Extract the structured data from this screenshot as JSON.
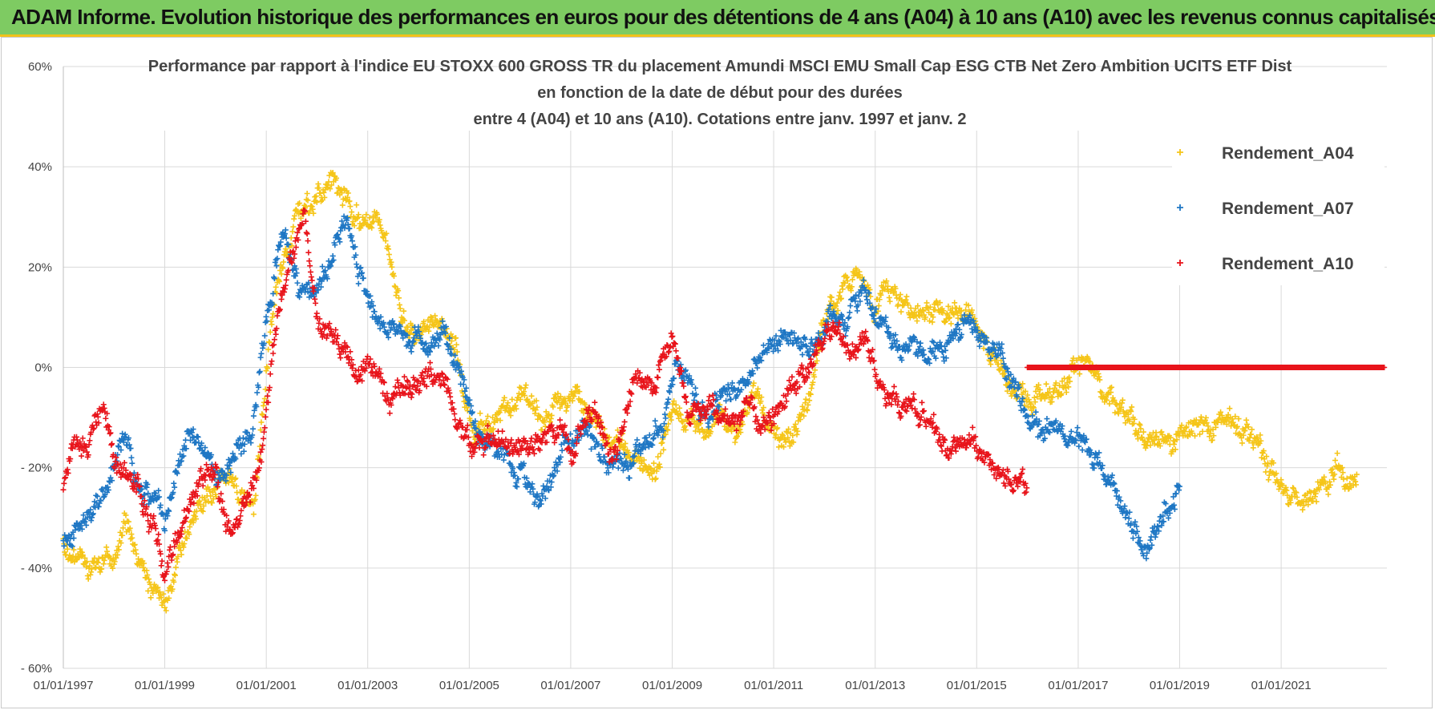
{
  "banner": {
    "title": "ADAM Informe. Evolution historique des performances en euros pour des détentions de 4 ans (A04) à 10 ans (A10) avec les revenus connus capitalisés"
  },
  "colors": {
    "banner_bg": "#7ecb62",
    "banner_border": "#f2c21b",
    "A04": "#f5c518",
    "A07": "#1f77c4",
    "A10": "#e8141b"
  },
  "chart_data": {
    "type": "scatter",
    "title_lines": [
      "Performance par rapport à l'indice EU STOXX 600 GROSS TR  du placement Amundi MSCI EMU Small Cap ESG CTB Net Zero Ambition UCITS ETF Dist",
      "en fonction de la date de début pour des durées",
      "entre 4 (A04) et 10 ans (A10). Cotations entre janv. 1997 et janv. 2"
    ],
    "x_ticks": [
      "01/01/1997",
      "01/01/1999",
      "01/01/2001",
      "01/01/2003",
      "01/01/2005",
      "01/01/2007",
      "01/01/2009",
      "01/01/2011",
      "01/01/2013",
      "01/01/2015",
      "01/01/2017",
      "01/01/2019",
      "01/01/2021"
    ],
    "y_ticks": [
      "60%",
      "40%",
      "20%",
      "0%",
      "- 20%",
      "- 40%",
      "- 60%"
    ],
    "ylim": [
      -60,
      60
    ],
    "xlim": [
      "1997-01-01",
      "2023-02-01"
    ],
    "grid": true,
    "legend_position": "top-right",
    "series": [
      {
        "name": "Rendement_A04",
        "color": "#f5c518",
        "points": [
          [
            "1997-01-01",
            -35
          ],
          [
            "1997-04-01",
            -39
          ],
          [
            "1997-09-01",
            -40
          ],
          [
            "1998-01-01",
            -36
          ],
          [
            "1998-04-01",
            -32
          ],
          [
            "1998-07-01",
            -37
          ],
          [
            "1998-10-01",
            -45
          ],
          [
            "1999-01-01",
            -48
          ],
          [
            "1999-04-01",
            -38
          ],
          [
            "1999-08-01",
            -29
          ],
          [
            "2000-01-01",
            -24
          ],
          [
            "2000-04-01",
            -21
          ],
          [
            "2000-07-01",
            -26
          ],
          [
            "2000-10-01",
            -28
          ],
          [
            "2001-01-01",
            0
          ],
          [
            "2001-04-01",
            18
          ],
          [
            "2001-08-01",
            30
          ],
          [
            "2001-12-01",
            32
          ],
          [
            "2002-04-01",
            38
          ],
          [
            "2002-08-01",
            33
          ],
          [
            "2002-12-01",
            28
          ],
          [
            "2003-03-01",
            30
          ],
          [
            "2003-06-01",
            23
          ],
          [
            "2003-09-01",
            12
          ],
          [
            "2004-01-01",
            6
          ],
          [
            "2004-06-01",
            9
          ],
          [
            "2004-10-01",
            2
          ],
          [
            "2005-02-01",
            -12
          ],
          [
            "2005-06-01",
            -12
          ],
          [
            "2005-10-01",
            -6
          ],
          [
            "2006-02-01",
            -4
          ],
          [
            "2006-06-01",
            -10
          ],
          [
            "2006-10-01",
            -8
          ],
          [
            "2007-02-01",
            -5
          ],
          [
            "2007-06-01",
            -10
          ],
          [
            "2007-10-01",
            -14
          ],
          [
            "2008-02-01",
            -16
          ],
          [
            "2008-06-01",
            -20
          ],
          [
            "2008-10-01",
            -19
          ],
          [
            "2009-01-01",
            -6
          ],
          [
            "2009-05-01",
            -12
          ],
          [
            "2009-09-01",
            -14
          ],
          [
            "2010-01-01",
            -9
          ],
          [
            "2010-05-01",
            -14
          ],
          [
            "2010-09-01",
            -6
          ],
          [
            "2011-01-01",
            -12
          ],
          [
            "2011-05-01",
            -15
          ],
          [
            "2011-09-01",
            -5
          ],
          [
            "2012-01-01",
            10
          ],
          [
            "2012-05-01",
            14
          ],
          [
            "2012-09-01",
            18
          ],
          [
            "2013-01-01",
            12
          ],
          [
            "2013-05-01",
            15
          ],
          [
            "2013-09-01",
            10
          ],
          [
            "2014-01-01",
            11
          ],
          [
            "2014-06-01",
            10
          ],
          [
            "2014-11-01",
            12
          ],
          [
            "2015-04-01",
            3
          ],
          [
            "2015-09-01",
            -3
          ],
          [
            "2016-02-01",
            -8
          ],
          [
            "2016-06-01",
            -6
          ],
          [
            "2016-10-01",
            -4
          ],
          [
            "2017-01-01",
            1
          ],
          [
            "2017-04-01",
            0
          ],
          [
            "2017-08-01",
            -5
          ],
          [
            "2018-01-01",
            -11
          ],
          [
            "2018-06-01",
            -14
          ],
          [
            "2018-11-01",
            -16
          ],
          [
            "2019-04-01",
            -11
          ],
          [
            "2019-09-01",
            -12
          ],
          [
            "2020-02-01",
            -12
          ],
          [
            "2020-07-01",
            -15
          ],
          [
            "2021-01-01",
            -22
          ],
          [
            "2021-05-01",
            -27
          ],
          [
            "2021-09-01",
            -25
          ],
          [
            "2022-02-01",
            -20
          ],
          [
            "2022-05-01",
            -23
          ],
          [
            "2022-07-01",
            -20
          ]
        ]
      },
      {
        "name": "Rendement_A07",
        "color": "#1f77c4",
        "points": [
          [
            "1997-01-01",
            -36
          ],
          [
            "1997-06-01",
            -30
          ],
          [
            "1997-12-01",
            -22
          ],
          [
            "1998-03-01",
            -16
          ],
          [
            "1998-06-01",
            -22
          ],
          [
            "1998-10-01",
            -27
          ],
          [
            "1999-01-01",
            -30
          ],
          [
            "1999-04-01",
            -20
          ],
          [
            "1999-07-01",
            -13
          ],
          [
            "1999-11-01",
            -18
          ],
          [
            "2000-03-01",
            -22
          ],
          [
            "2000-07-01",
            -16
          ],
          [
            "2000-10-01",
            -12
          ],
          [
            "2001-01-01",
            10
          ],
          [
            "2001-05-01",
            28
          ],
          [
            "2001-09-01",
            15
          ],
          [
            "2002-01-01",
            18
          ],
          [
            "2002-05-01",
            22
          ],
          [
            "2002-08-01",
            30
          ],
          [
            "2002-12-01",
            16
          ],
          [
            "2003-04-01",
            10
          ],
          [
            "2003-09-01",
            6
          ],
          [
            "2004-02-01",
            4
          ],
          [
            "2004-07-01",
            8
          ],
          [
            "2004-11-01",
            -2
          ],
          [
            "2005-03-01",
            -15
          ],
          [
            "2005-08-01",
            -16
          ],
          [
            "2006-01-01",
            -22
          ],
          [
            "2006-06-01",
            -26
          ],
          [
            "2006-11-01",
            -18
          ],
          [
            "2007-04-01",
            -12
          ],
          [
            "2007-09-01",
            -18
          ],
          [
            "2008-02-01",
            -20
          ],
          [
            "2008-06-01",
            -16
          ],
          [
            "2008-11-01",
            -12
          ],
          [
            "2009-02-01",
            6
          ],
          [
            "2009-06-01",
            -6
          ],
          [
            "2009-10-01",
            -8
          ],
          [
            "2010-03-01",
            -5
          ],
          [
            "2010-07-01",
            -2
          ],
          [
            "2010-11-01",
            2
          ],
          [
            "2011-04-01",
            4
          ],
          [
            "2011-09-01",
            3
          ],
          [
            "2012-01-01",
            8
          ],
          [
            "2012-06-01",
            10
          ],
          [
            "2012-10-01",
            15
          ],
          [
            "2013-03-01",
            8
          ],
          [
            "2013-08-01",
            3
          ],
          [
            "2014-01-01",
            2
          ],
          [
            "2014-06-01",
            4
          ],
          [
            "2014-11-01",
            12
          ],
          [
            "2015-03-01",
            5
          ],
          [
            "2015-08-01",
            0
          ],
          [
            "2016-01-01",
            -10
          ],
          [
            "2016-05-01",
            -12
          ],
          [
            "2016-10-01",
            -14
          ],
          [
            "2017-04-01",
            -18
          ],
          [
            "2017-09-01",
            -25
          ],
          [
            "2018-01-01",
            -30
          ],
          [
            "2018-05-01",
            -35
          ],
          [
            "2018-09-01",
            -30
          ],
          [
            "2019-01-01",
            -24
          ]
        ]
      },
      {
        "name": "Rendement_A10",
        "color": "#e8141b",
        "points": [
          [
            "1997-01-01",
            -24
          ],
          [
            "1997-03-01",
            -16
          ],
          [
            "1997-07-01",
            -14
          ],
          [
            "1997-10-01",
            -6
          ],
          [
            "1998-01-01",
            -18
          ],
          [
            "1998-05-01",
            -22
          ],
          [
            "1998-09-01",
            -28
          ],
          [
            "1999-01-01",
            -40
          ],
          [
            "1999-04-01",
            -35
          ],
          [
            "1999-09-01",
            -22
          ],
          [
            "2000-01-01",
            -21
          ],
          [
            "2000-05-01",
            -35
          ],
          [
            "2000-09-01",
            -24
          ],
          [
            "2000-12-01",
            -18
          ],
          [
            "2001-03-01",
            6
          ],
          [
            "2001-07-01",
            22
          ],
          [
            "2001-10-01",
            30
          ],
          [
            "2002-01-01",
            10
          ],
          [
            "2002-05-01",
            6
          ],
          [
            "2002-09-01",
            0
          ],
          [
            "2003-01-01",
            -2
          ],
          [
            "2003-06-01",
            -6
          ],
          [
            "2003-11-01",
            -4
          ],
          [
            "2004-04-01",
            -2
          ],
          [
            "2004-08-01",
            -4
          ],
          [
            "2005-01-01",
            -16
          ],
          [
            "2005-06-01",
            -14
          ],
          [
            "2005-11-01",
            -16
          ],
          [
            "2006-04-01",
            -14
          ],
          [
            "2006-09-01",
            -12
          ],
          [
            "2007-02-01",
            -16
          ],
          [
            "2007-06-01",
            -8
          ],
          [
            "2007-11-01",
            -18
          ],
          [
            "2008-04-01",
            -2
          ],
          [
            "2008-09-01",
            -4
          ],
          [
            "2009-01-01",
            6
          ],
          [
            "2009-05-01",
            -10
          ],
          [
            "2009-09-01",
            -8
          ],
          [
            "2010-02-01",
            -10
          ],
          [
            "2010-07-01",
            -8
          ],
          [
            "2010-11-01",
            -12
          ],
          [
            "2011-04-01",
            -6
          ],
          [
            "2011-09-01",
            0
          ],
          [
            "2012-02-01",
            8
          ],
          [
            "2012-06-01",
            4
          ],
          [
            "2012-11-01",
            6
          ],
          [
            "2013-03-01",
            -4
          ],
          [
            "2013-08-01",
            -8
          ],
          [
            "2014-01-01",
            -10
          ],
          [
            "2014-06-01",
            -18
          ],
          [
            "2014-11-01",
            -15
          ],
          [
            "2015-04-01",
            -18
          ],
          [
            "2015-09-01",
            -22
          ],
          [
            "2016-01-01",
            -23
          ]
        ]
      },
      {
        "name": "",
        "color": "#e8141b",
        "points": [
          [
            "2016-01-01",
            0
          ],
          [
            "2023-01-15",
            0
          ]
        ]
      }
    ]
  }
}
